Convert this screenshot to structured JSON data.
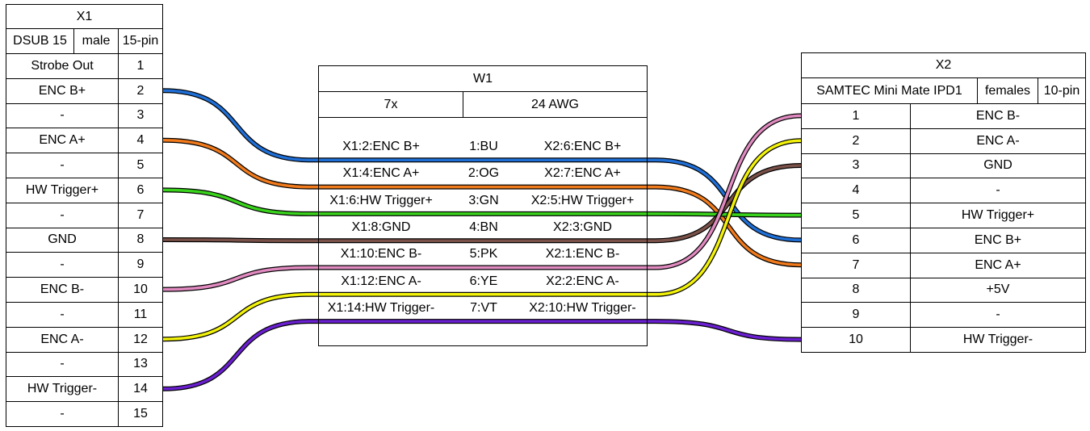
{
  "x1": {
    "name": "X1",
    "type": "DSUB 15",
    "gender": "male",
    "pincount": "15-pin",
    "pins": [
      {
        "label": "Strobe Out",
        "pin": "1"
      },
      {
        "label": "ENC B+",
        "pin": "2"
      },
      {
        "label": "-",
        "pin": "3"
      },
      {
        "label": "ENC A+",
        "pin": "4"
      },
      {
        "label": "-",
        "pin": "5"
      },
      {
        "label": "HW Trigger+",
        "pin": "6"
      },
      {
        "label": "-",
        "pin": "7"
      },
      {
        "label": "GND",
        "pin": "8"
      },
      {
        "label": "-",
        "pin": "9"
      },
      {
        "label": "ENC B-",
        "pin": "10"
      },
      {
        "label": "-",
        "pin": "11"
      },
      {
        "label": "ENC A-",
        "pin": "12"
      },
      {
        "label": "-",
        "pin": "13"
      },
      {
        "label": "HW Trigger-",
        "pin": "14"
      },
      {
        "label": "-",
        "pin": "15"
      }
    ]
  },
  "w1": {
    "name": "W1",
    "count": "7x",
    "gauge": "24 AWG",
    "wires": [
      {
        "from": "X1:2:ENC B+",
        "wire": "1:BU",
        "to": "X2:6:ENC B+",
        "color": "#1f6fd6",
        "x1pin": 2,
        "x2pin": 6
      },
      {
        "from": "X1:4:ENC A+",
        "wire": "2:OG",
        "to": "X2:7:ENC A+",
        "color": "#f07a1c",
        "x1pin": 4,
        "x2pin": 7
      },
      {
        "from": "X1:6:HW Trigger+",
        "wire": "3:GN",
        "to": "X2:5:HW Trigger+",
        "color": "#39d21c",
        "x1pin": 6,
        "x2pin": 5
      },
      {
        "from": "X1:8:GND",
        "wire": "4:BN",
        "to": "X2:3:GND",
        "color": "#7a5148",
        "x1pin": 8,
        "x2pin": 3
      },
      {
        "from": "X1:10:ENC B-",
        "wire": "5:PK",
        "to": "X2:1:ENC B-",
        "color": "#e08ac0",
        "x1pin": 10,
        "x2pin": 1
      },
      {
        "from": "X1:12:ENC A-",
        "wire": "6:YE",
        "to": "X2:2:ENC A-",
        "color": "#f2f20a",
        "x1pin": 12,
        "x2pin": 2
      },
      {
        "from": "X1:14:HW Trigger-",
        "wire": "7:VT",
        "to": "X2:10:HW Trigger-",
        "color": "#6a1fd0",
        "x1pin": 14,
        "x2pin": 10
      }
    ]
  },
  "x2": {
    "name": "X2",
    "type": "SAMTEC Mini Mate IPD1",
    "gender": "females",
    "pincount": "10-pin",
    "pins": [
      {
        "pin": "1",
        "label": "ENC B-"
      },
      {
        "pin": "2",
        "label": "ENC A-"
      },
      {
        "pin": "3",
        "label": "GND"
      },
      {
        "pin": "4",
        "label": "-"
      },
      {
        "pin": "5",
        "label": "HW Trigger+"
      },
      {
        "pin": "6",
        "label": "ENC B+"
      },
      {
        "pin": "7",
        "label": "ENC A+"
      },
      {
        "pin": "8",
        "label": "+5V"
      },
      {
        "pin": "9",
        "label": "-"
      },
      {
        "pin": "10",
        "label": "HW Trigger-"
      }
    ]
  }
}
